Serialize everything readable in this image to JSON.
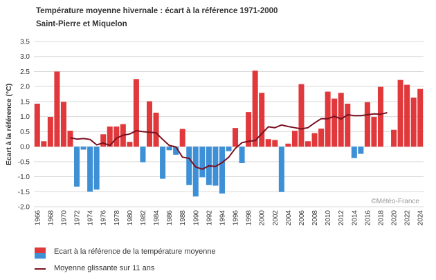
{
  "chart_data": {
    "type": "bar",
    "title": "Température moyenne hivernale : écart à la référence 1971-2000",
    "subtitle": "Saint-Pierre et Miquelon",
    "ylabel": "Ecart à la référence (°C)",
    "xlabel": "",
    "ylim": [
      -2.0,
      3.5
    ],
    "yticks": [
      "3.5",
      "3.0",
      "2.5",
      "2.0",
      "1.5",
      "1.0",
      "0.5",
      "0.0",
      "-0.5",
      "-1.0",
      "-1.5",
      "-2.0"
    ],
    "xtick_labels": [
      "1966",
      "1968",
      "1970",
      "1972",
      "1974",
      "1976",
      "1978",
      "1980",
      "1982",
      "1984",
      "1986",
      "1988",
      "1990",
      "1992",
      "1994",
      "1996",
      "1998",
      "2000",
      "2002",
      "2004",
      "2006",
      "2008",
      "2010",
      "2012",
      "2014",
      "2016",
      "2018",
      "2020",
      "2022",
      "2024"
    ],
    "grid": true,
    "x": [
      1966,
      1967,
      1968,
      1969,
      1970,
      1971,
      1972,
      1973,
      1974,
      1975,
      1976,
      1977,
      1978,
      1979,
      1980,
      1981,
      1982,
      1983,
      1984,
      1985,
      1986,
      1987,
      1988,
      1989,
      1990,
      1991,
      1992,
      1993,
      1994,
      1995,
      1996,
      1997,
      1998,
      1999,
      2000,
      2001,
      2002,
      2003,
      2004,
      2005,
      2006,
      2007,
      2008,
      2009,
      2010,
      2011,
      2012,
      2013,
      2014,
      2015,
      2016,
      2017,
      2018,
      2019,
      2020,
      2021,
      2022,
      2023,
      2024
    ],
    "series": [
      {
        "name": "Ecart à la référence de la température moyenne",
        "type": "bar",
        "values": [
          1.43,
          0.18,
          0.99,
          2.5,
          1.49,
          0.53,
          -1.33,
          -0.1,
          -1.5,
          -1.43,
          0.41,
          0.67,
          0.67,
          0.75,
          0.16,
          2.25,
          -0.52,
          1.51,
          1.13,
          -1.07,
          -0.12,
          -0.27,
          0.59,
          -1.28,
          -1.66,
          -1.02,
          -1.28,
          -1.3,
          -1.56,
          -0.15,
          0.62,
          -0.55,
          1.15,
          2.53,
          1.79,
          0.25,
          0.22,
          -1.51,
          0.1,
          0.53,
          2.08,
          0.18,
          0.45,
          0.6,
          1.83,
          1.6,
          1.79,
          1.43,
          -0.38,
          -0.24,
          1.48,
          0.99,
          1.99,
          0.0,
          0.56,
          2.22,
          2.06,
          1.63,
          1.92
        ]
      },
      {
        "name": "Moyenne glissante sur 11 ans",
        "type": "line",
        "x": [
          1971,
          1972,
          1973,
          1974,
          1975,
          1976,
          1977,
          1978,
          1979,
          1980,
          1981,
          1982,
          1983,
          1984,
          1985,
          1986,
          1987,
          1988,
          1989,
          1990,
          1991,
          1992,
          1993,
          1994,
          1995,
          1996,
          1997,
          1998,
          1999,
          2000,
          2001,
          2002,
          2003,
          2004,
          2005,
          2006,
          2007,
          2008,
          2009,
          2010,
          2011,
          2012,
          2013,
          2014,
          2015,
          2016,
          2017,
          2018,
          2019
        ],
        "values": [
          0.3,
          0.25,
          0.27,
          0.24,
          0.06,
          0.12,
          0.04,
          0.28,
          0.38,
          0.42,
          0.53,
          0.5,
          0.48,
          0.46,
          0.24,
          0.04,
          -0.01,
          -0.35,
          -0.39,
          -0.68,
          -0.75,
          -0.64,
          -0.66,
          -0.53,
          -0.35,
          -0.06,
          0.13,
          0.18,
          0.2,
          0.43,
          0.66,
          0.63,
          0.72,
          0.67,
          0.63,
          0.59,
          0.63,
          0.79,
          0.93,
          0.93,
          1.01,
          0.92,
          1.06,
          1.03,
          1.03,
          1.06,
          1.09,
          1.08,
          1.13
        ]
      }
    ],
    "colors": {
      "positive": "#e0383b",
      "negative": "#3d8fd6",
      "line": "#7a1020",
      "grid": "#d9d9d9"
    }
  },
  "credit": "©Météo-France",
  "legend": {
    "bars_label": "Ecart à la référence de la température moyenne",
    "line_label": "Moyenne glissante sur 11 ans"
  }
}
